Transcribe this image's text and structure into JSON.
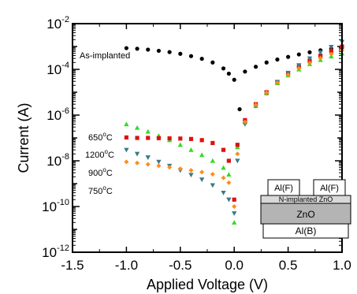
{
  "chart_data": {
    "type": "scatter",
    "xlabel": "Applied Voltage (V)",
    "ylabel": "Current (A)",
    "xlim": [
      -1.5,
      1.0
    ],
    "ylim_exp": [
      -12,
      -2
    ],
    "y_scale": "log",
    "xticks": [
      {
        "v": -1.5,
        "label": "-1.5"
      },
      {
        "v": -1.0,
        "label": "-1.0"
      },
      {
        "v": -0.5,
        "label": "-0.5"
      },
      {
        "v": 0.0,
        "label": "0.0"
      },
      {
        "v": 0.5,
        "label": "0.5"
      },
      {
        "v": 1.0,
        "label": "1.0"
      }
    ],
    "yticks": [
      {
        "exp": -12,
        "base": "10",
        "sup": "-12"
      },
      {
        "exp": -10,
        "base": "10",
        "sup": "-10"
      },
      {
        "exp": -8,
        "base": "10",
        "sup": "-8"
      },
      {
        "exp": -6,
        "base": "10",
        "sup": "-6"
      },
      {
        "exp": -4,
        "base": "10",
        "sup": "-4"
      },
      {
        "exp": -2,
        "base": "10",
        "sup": "-2"
      }
    ],
    "annotation": "As-implanted",
    "series": [
      {
        "name": "As-implanted",
        "color": "#000000",
        "marker": "circle",
        "points": [
          [
            -1.0,
            0.00085
          ],
          [
            -0.9,
            0.0008
          ],
          [
            -0.8,
            0.00073
          ],
          [
            -0.7,
            0.00065
          ],
          [
            -0.6,
            0.00057
          ],
          [
            -0.5,
            0.00048
          ],
          [
            -0.4,
            0.00038
          ],
          [
            -0.3,
            0.00029
          ],
          [
            -0.2,
            0.0002
          ],
          [
            -0.1,
            0.00011
          ],
          [
            -0.05,
            6.5e-05
          ],
          [
            0.0,
            3.5e-05
          ],
          [
            0.05,
            1.8e-06
          ],
          [
            0.1,
            8e-05
          ],
          [
            0.2,
            0.00013
          ],
          [
            0.3,
            0.0002
          ],
          [
            0.4,
            0.00027
          ],
          [
            0.5,
            0.00035
          ],
          [
            0.6,
            0.00045
          ],
          [
            0.7,
            0.00056
          ],
          [
            0.8,
            0.00068
          ],
          [
            0.9,
            0.0008
          ],
          [
            1.0,
            0.0009
          ]
        ]
      },
      {
        "name": "650°C",
        "color": "#33dd22",
        "marker": "triangle",
        "points": [
          [
            -1.0,
            4e-07
          ],
          [
            -0.9,
            2.8e-07
          ],
          [
            -0.8,
            1.9e-07
          ],
          [
            -0.7,
            1.25e-07
          ],
          [
            -0.6,
            8e-08
          ],
          [
            -0.5,
            5e-08
          ],
          [
            -0.4,
            3e-08
          ],
          [
            -0.3,
            1.8e-08
          ],
          [
            -0.2,
            1e-08
          ],
          [
            -0.1,
            5e-09
          ],
          [
            -0.05,
            2.5e-09
          ],
          [
            0.0,
            2e-11
          ],
          [
            0.03,
            4e-08
          ],
          [
            0.1,
            5e-07
          ],
          [
            0.2,
            2.5e-06
          ],
          [
            0.3,
            9e-06
          ],
          [
            0.4,
            2.5e-05
          ],
          [
            0.5,
            5.5e-05
          ],
          [
            0.6,
            0.0001
          ],
          [
            0.7,
            0.00017
          ],
          [
            0.8,
            0.00026
          ],
          [
            0.9,
            0.00037
          ],
          [
            1.0,
            0.0005
          ]
        ]
      },
      {
        "name": "1200°C",
        "color": "#dd1111",
        "marker": "square",
        "points": [
          [
            -1.0,
            1.05e-07
          ],
          [
            -0.9,
            1e-07
          ],
          [
            -0.8,
            1e-07
          ],
          [
            -0.7,
            9.8e-08
          ],
          [
            -0.6,
            9.6e-08
          ],
          [
            -0.5,
            9.4e-08
          ],
          [
            -0.4,
            9e-08
          ],
          [
            -0.3,
            8e-08
          ],
          [
            -0.2,
            6e-08
          ],
          [
            -0.1,
            3e-08
          ],
          [
            -0.05,
            1e-08
          ],
          [
            0.0,
            2e-10
          ],
          [
            0.03,
            5e-08
          ],
          [
            0.1,
            6e-07
          ],
          [
            0.2,
            3e-06
          ],
          [
            0.3,
            1e-05
          ],
          [
            0.4,
            2.8e-05
          ],
          [
            0.5,
            6.5e-05
          ],
          [
            0.6,
            0.00013
          ],
          [
            0.7,
            0.00024
          ],
          [
            0.8,
            0.0004
          ],
          [
            0.9,
            0.00065
          ],
          [
            1.0,
            0.001
          ]
        ]
      },
      {
        "name": "900°C",
        "color": "#3a7a8a",
        "marker": "triangle-down",
        "points": [
          [
            -1.0,
            3e-08
          ],
          [
            -0.9,
            2e-08
          ],
          [
            -0.8,
            1.4e-08
          ],
          [
            -0.7,
            9e-09
          ],
          [
            -0.6,
            6e-09
          ],
          [
            -0.5,
            3.8e-09
          ],
          [
            -0.4,
            2.4e-09
          ],
          [
            -0.3,
            1.5e-09
          ],
          [
            -0.2,
            8.5e-10
          ],
          [
            -0.1,
            4e-10
          ],
          [
            -0.05,
            2e-10
          ],
          [
            0.0,
            5e-11
          ],
          [
            0.03,
            1e-08
          ],
          [
            0.1,
            4e-07
          ],
          [
            0.2,
            2.5e-06
          ],
          [
            0.3,
            9e-06
          ],
          [
            0.4,
            2.8e-05
          ],
          [
            0.5,
            7e-05
          ],
          [
            0.6,
            0.00015
          ],
          [
            0.7,
            0.0003
          ],
          [
            0.8,
            0.00055
          ],
          [
            0.9,
            0.00095
          ],
          [
            1.0,
            0.0016
          ]
        ]
      },
      {
        "name": "750°C",
        "color": "#ff8c1a",
        "marker": "diamond",
        "points": [
          [
            -1.0,
            9e-09
          ],
          [
            -0.9,
            8e-09
          ],
          [
            -0.8,
            7e-09
          ],
          [
            -0.7,
            6e-09
          ],
          [
            -0.6,
            5.2e-09
          ],
          [
            -0.5,
            4.5e-09
          ],
          [
            -0.4,
            3.8e-09
          ],
          [
            -0.3,
            3.2e-09
          ],
          [
            -0.2,
            2.6e-09
          ],
          [
            -0.1,
            1.8e-09
          ],
          [
            -0.05,
            1.1e-09
          ],
          [
            0.0,
            1e-10
          ],
          [
            0.03,
            2e-08
          ],
          [
            0.1,
            5e-07
          ],
          [
            0.2,
            2.8e-06
          ],
          [
            0.3,
            9.5e-06
          ],
          [
            0.4,
            2.6e-05
          ],
          [
            0.5,
            5.8e-05
          ],
          [
            0.6,
            0.00011
          ],
          [
            0.7,
            0.00019
          ],
          [
            0.8,
            0.00031
          ],
          [
            0.9,
            0.00047
          ],
          [
            1.0,
            0.00068
          ]
        ]
      }
    ],
    "legend": [
      {
        "base": "650",
        "sup": "o",
        "unit": "C"
      },
      {
        "base": "1200",
        "sup": "o",
        "unit": "C"
      },
      {
        "base": "900",
        "sup": "o",
        "unit": "C"
      },
      {
        "base": "750",
        "sup": "o",
        "unit": "C"
      }
    ],
    "inset": {
      "contact_left": "Al(F)",
      "contact_right": "Al(F)",
      "layer_top": "N-implanted ZnO",
      "layer_mid": "ZnO",
      "layer_bottom": "Al(B)"
    }
  }
}
